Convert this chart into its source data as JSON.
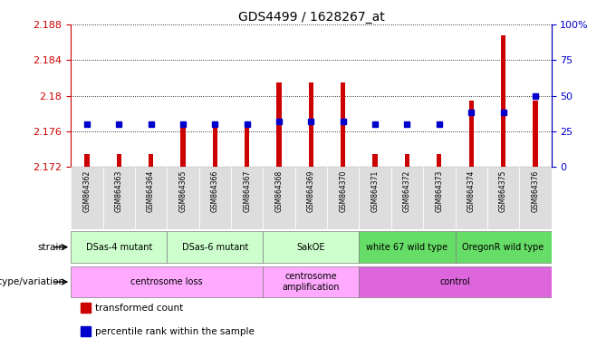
{
  "title": "GDS4499 / 1628267_at",
  "samples": [
    "GSM864362",
    "GSM864363",
    "GSM864364",
    "GSM864365",
    "GSM864366",
    "GSM864367",
    "GSM864368",
    "GSM864369",
    "GSM864370",
    "GSM864371",
    "GSM864372",
    "GSM864373",
    "GSM864374",
    "GSM864375",
    "GSM864376"
  ],
  "transformed_count": [
    2.1735,
    2.1735,
    2.1735,
    2.1765,
    2.1768,
    2.1768,
    2.1815,
    2.1815,
    2.1815,
    2.1735,
    2.1735,
    2.1735,
    2.1795,
    2.1868,
    2.1795
  ],
  "percentile_rank": [
    30,
    30,
    30,
    30,
    30,
    30,
    32,
    32,
    32,
    30,
    30,
    30,
    38,
    38,
    50
  ],
  "ylim_left": [
    2.172,
    2.188
  ],
  "ylim_right": [
    0,
    100
  ],
  "yticks_left": [
    2.172,
    2.176,
    2.18,
    2.184,
    2.188
  ],
  "yticks_right": [
    0,
    25,
    50,
    75,
    100
  ],
  "ytick_labels_right": [
    "0",
    "25",
    "50",
    "75",
    "100%"
  ],
  "bar_color": "#cc0000",
  "dot_color": "#0000cc",
  "bar_baseline": 2.172,
  "strain_groups": [
    {
      "label": "DSas-4 mutant",
      "start": 0,
      "end": 3,
      "color": "#ccffcc"
    },
    {
      "label": "DSas-6 mutant",
      "start": 3,
      "end": 6,
      "color": "#ccffcc"
    },
    {
      "label": "SakOE",
      "start": 6,
      "end": 9,
      "color": "#ccffcc"
    },
    {
      "label": "white 67 wild type",
      "start": 9,
      "end": 12,
      "color": "#66dd66"
    },
    {
      "label": "OregonR wild type",
      "start": 12,
      "end": 15,
      "color": "#66dd66"
    }
  ],
  "genotype_groups": [
    {
      "label": "centrosome loss",
      "start": 0,
      "end": 6,
      "color": "#ffaaff"
    },
    {
      "label": "centrosome\namplification",
      "start": 6,
      "end": 9,
      "color": "#ffaaff"
    },
    {
      "label": "control",
      "start": 9,
      "end": 15,
      "color": "#dd66dd"
    }
  ],
  "strain_label": "strain",
  "genotype_label": "genotype/variation",
  "legend_items": [
    {
      "color": "#cc0000",
      "label": "transformed count"
    },
    {
      "color": "#0000cc",
      "label": "percentile rank within the sample"
    }
  ]
}
